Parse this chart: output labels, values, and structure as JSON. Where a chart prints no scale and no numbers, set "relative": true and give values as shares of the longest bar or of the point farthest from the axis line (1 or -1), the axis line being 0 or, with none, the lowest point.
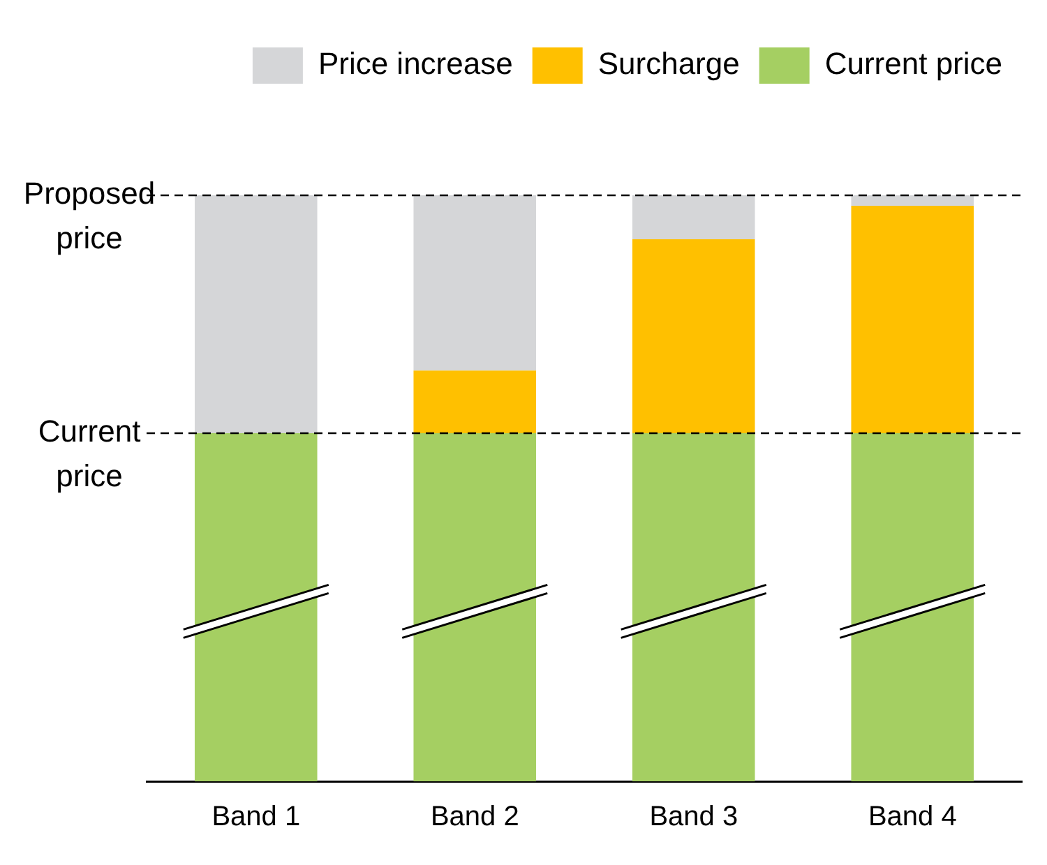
{
  "chart_data": {
    "type": "bar",
    "stacked": true,
    "relative": true,
    "categories": [
      "Band 1",
      "Band 2",
      "Band 3",
      "Band 4"
    ],
    "series": [
      {
        "name": "Current price",
        "color": "#a5cf62",
        "values": [
          0.594,
          0.594,
          0.594,
          0.594
        ]
      },
      {
        "name": "Surcharge",
        "color": "#ffc000",
        "values": [
          0,
          0.107,
          0.331,
          0.388
        ]
      },
      {
        "name": "Price increase",
        "color": "#d5d6d8",
        "values": [
          0.406,
          0.299,
          0.075,
          0.018
        ]
      }
    ],
    "ref_lines": [
      {
        "axis": "y",
        "value": 1,
        "label": "Proposed price",
        "line_style": "dashed"
      },
      {
        "axis": "y",
        "value": 0.594,
        "label": "Current price",
        "line_style": "dashed"
      }
    ],
    "legend": "top",
    "grid": false
  }
}
